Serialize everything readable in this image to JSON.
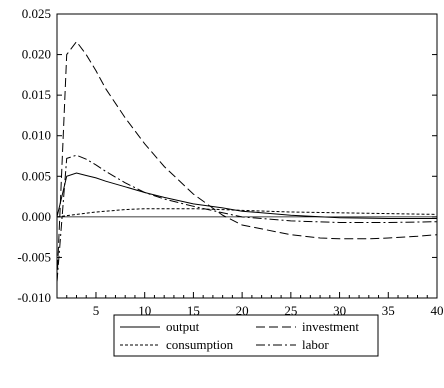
{
  "chart_data": {
    "type": "line",
    "title": "",
    "xlabel": "",
    "ylabel": "",
    "xlim": [
      1,
      40
    ],
    "ylim": [
      -0.01,
      0.025
    ],
    "x_ticks": [
      5,
      10,
      15,
      20,
      25,
      30,
      35,
      40
    ],
    "x_tick_labels": [
      "5",
      "10",
      "15",
      "20",
      "25",
      "30",
      "35",
      "40"
    ],
    "y_ticks": [
      -0.01,
      -0.005,
      0.0,
      0.005,
      0.01,
      0.015,
      0.02,
      0.025
    ],
    "y_tick_labels": [
      "-0.010",
      "-0.005",
      "0.000",
      "0.005",
      "0.010",
      "0.015",
      "0.020",
      "0.025"
    ],
    "grid": false,
    "zero_line": true,
    "legend_position": "bottom",
    "series": [
      {
        "name": "output",
        "style": "solid",
        "x": [
          1,
          2,
          3,
          4,
          5,
          6,
          8,
          10,
          12,
          15,
          18,
          20,
          25,
          30,
          35,
          40
        ],
        "y": [
          0.0,
          0.005,
          0.0054,
          0.0051,
          0.0048,
          0.0044,
          0.0037,
          0.003,
          0.0024,
          0.0016,
          0.0011,
          0.0007,
          0.0002,
          -0.0001,
          -0.0002,
          -0.0002
        ]
      },
      {
        "name": "investment",
        "style": "long-dash",
        "x": [
          1,
          2,
          3,
          4,
          5,
          6,
          8,
          10,
          12,
          15,
          18,
          20,
          25,
          28,
          30,
          33,
          35,
          38,
          40
        ],
        "y": [
          -0.008,
          0.02,
          0.0216,
          0.02,
          0.018,
          0.0158,
          0.0122,
          0.009,
          0.0062,
          0.0028,
          0.0002,
          -0.001,
          -0.0022,
          -0.0026,
          -0.0027,
          -0.0027,
          -0.0026,
          -0.0024,
          -0.0022
        ]
      },
      {
        "name": "consumption",
        "style": "short-dash",
        "x": [
          1,
          3,
          5,
          8,
          10,
          13,
          15,
          18,
          20,
          25,
          30,
          35,
          40
        ],
        "y": [
          0.0,
          0.0003,
          0.0006,
          0.0009,
          0.001,
          0.001,
          0.001,
          0.0009,
          0.0008,
          0.0006,
          0.0005,
          0.0004,
          0.0003
        ]
      },
      {
        "name": "labor",
        "style": "dash-dot",
        "x": [
          1,
          2,
          3,
          4,
          5,
          6,
          8,
          10,
          12,
          15,
          18,
          20,
          25,
          30,
          35,
          40
        ],
        "y": [
          -0.008,
          0.0072,
          0.0076,
          0.0071,
          0.0064,
          0.0056,
          0.0042,
          0.003,
          0.0022,
          0.0013,
          0.0005,
          0.0,
          -0.0005,
          -0.0007,
          -0.0007,
          -0.0006
        ]
      }
    ]
  },
  "colors": {
    "lines": "#000000",
    "background": "#ffffff"
  }
}
